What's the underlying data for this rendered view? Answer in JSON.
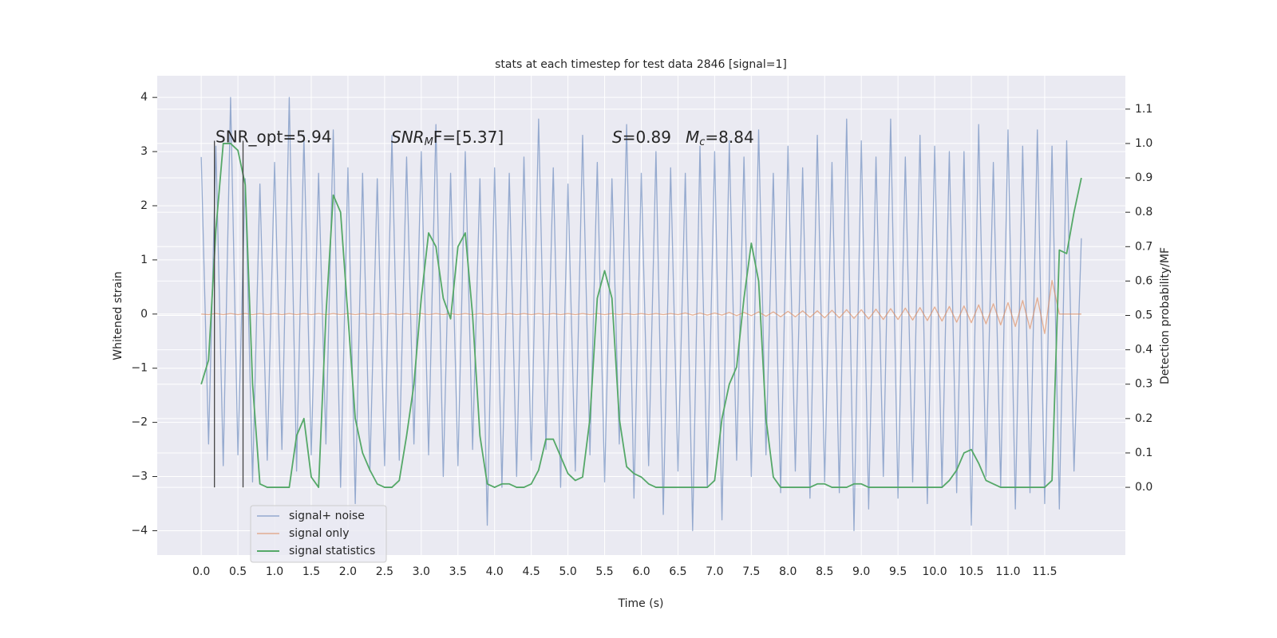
{
  "chart_data": {
    "type": "line",
    "title": "stats at each timestep for test data 2846 [signal=1]",
    "xlabel": "Time (s)",
    "ylabel": "Whitened strain",
    "y2label": "Detection probability/MF",
    "annotations": [
      "SNR_opt=5.94",
      {
        "base": "SNR",
        "sub": "M",
        "tail": "F=[5.37]"
      },
      {
        "base": "S",
        "tail": "=0.89"
      },
      {
        "base": "M",
        "sub": "c",
        "tail": "=8.84"
      }
    ],
    "x": [
      0.0,
      0.1,
      0.2,
      0.3,
      0.4,
      0.5,
      0.6,
      0.7,
      0.8,
      0.9,
      1.0,
      1.1,
      1.2,
      1.3,
      1.4,
      1.5,
      1.6,
      1.7,
      1.8,
      1.9,
      2.0,
      2.1,
      2.2,
      2.3,
      2.4,
      2.5,
      2.6,
      2.7,
      2.8,
      2.9,
      3.0,
      3.1,
      3.2,
      3.3,
      3.4,
      3.5,
      3.6,
      3.7,
      3.8,
      3.9,
      4.0,
      4.1,
      4.2,
      4.3,
      4.4,
      4.5,
      4.6,
      4.7,
      4.8,
      4.9,
      5.0,
      5.1,
      5.2,
      5.3,
      5.4,
      5.5,
      5.6,
      5.7,
      5.8,
      5.9,
      6.0,
      6.1,
      6.2,
      6.3,
      6.4,
      6.5,
      6.6,
      6.7,
      6.8,
      6.9,
      7.0,
      7.1,
      7.2,
      7.3,
      7.4,
      7.5,
      7.6,
      7.7,
      7.8,
      7.9,
      8.0,
      8.1,
      8.2,
      8.3,
      8.4,
      8.5,
      8.6,
      8.7,
      8.8,
      8.9,
      9.0,
      9.1,
      9.2,
      9.3,
      9.4,
      9.5,
      9.6,
      9.7,
      9.8,
      9.9,
      10.0,
      10.1,
      10.2,
      10.3,
      10.4,
      10.5,
      10.6,
      10.7,
      10.8,
      10.9,
      11.0,
      11.1,
      11.2,
      11.3,
      11.4,
      11.5,
      11.6,
      11.7,
      11.8,
      11.9,
      12.0
    ],
    "series": [
      {
        "name": "signal+ noise",
        "color": "#4c72b0",
        "axis": "y",
        "values": [
          2.9,
          -2.4,
          3.1,
          -2.8,
          4.0,
          -2.6,
          2.5,
          -3.1,
          2.4,
          -2.7,
          2.8,
          -2.5,
          4.0,
          -2.9,
          3.3,
          -2.6,
          2.6,
          -2.4,
          3.4,
          -3.2,
          2.7,
          -3.5,
          2.6,
          -2.9,
          2.5,
          -2.8,
          3.3,
          -2.7,
          2.9,
          -2.4,
          3.0,
          -2.6,
          3.5,
          -3.0,
          2.6,
          -2.8,
          3.0,
          -2.5,
          2.5,
          -3.9,
          2.7,
          -3.2,
          2.6,
          -3.0,
          2.9,
          -2.7,
          3.6,
          -2.5,
          2.7,
          -3.2,
          2.4,
          -2.9,
          3.3,
          -2.6,
          2.8,
          -3.1,
          2.5,
          -2.4,
          3.5,
          -3.4,
          2.6,
          -2.8,
          3.0,
          -3.7,
          2.7,
          -2.9,
          2.6,
          -4.0,
          3.1,
          -3.2,
          3.0,
          -3.8,
          3.2,
          -2.7,
          2.9,
          -3.0,
          3.4,
          -2.6,
          2.6,
          -3.3,
          3.1,
          -2.9,
          2.7,
          -3.4,
          3.3,
          -3.1,
          2.8,
          -3.3,
          3.6,
          -4.0,
          3.2,
          -3.6,
          2.9,
          -3.0,
          3.6,
          -3.4,
          2.9,
          -3.1,
          3.3,
          -3.5,
          3.1,
          -3.2,
          3.0,
          -3.3,
          3.0,
          -3.9,
          3.5,
          -3.0,
          2.8,
          -3.2,
          3.4,
          -3.6,
          3.1,
          -3.3,
          3.4,
          -3.5,
          3.1,
          -3.6,
          3.2,
          -2.9,
          1.4
        ]
      },
      {
        "name": "signal only",
        "color": "#dd8452",
        "axis": "y",
        "values": [
          0.0,
          -0.01,
          0.01,
          -0.01,
          0.01,
          -0.01,
          0.01,
          -0.01,
          0.01,
          -0.01,
          0.01,
          -0.01,
          0.01,
          -0.01,
          0.01,
          -0.01,
          0.01,
          -0.01,
          0.01,
          -0.01,
          0.01,
          -0.01,
          0.01,
          -0.01,
          0.01,
          -0.01,
          0.01,
          -0.01,
          0.01,
          -0.01,
          0.01,
          -0.01,
          0.01,
          -0.01,
          0.01,
          -0.01,
          0.01,
          -0.01,
          0.01,
          -0.01,
          0.01,
          -0.01,
          0.01,
          -0.01,
          0.01,
          -0.01,
          0.01,
          -0.01,
          0.01,
          -0.01,
          0.01,
          -0.01,
          0.01,
          -0.01,
          0.01,
          -0.01,
          0.01,
          -0.01,
          0.01,
          -0.01,
          0.01,
          -0.01,
          0.01,
          -0.01,
          0.01,
          -0.01,
          0.02,
          -0.02,
          0.02,
          -0.02,
          0.02,
          -0.02,
          0.03,
          -0.03,
          0.03,
          -0.03,
          0.04,
          -0.04,
          0.04,
          -0.05,
          0.05,
          -0.05,
          0.06,
          -0.06,
          0.06,
          -0.07,
          0.07,
          -0.07,
          0.08,
          -0.08,
          0.08,
          -0.09,
          0.09,
          -0.1,
          0.1,
          -0.1,
          0.11,
          -0.11,
          0.12,
          -0.12,
          0.13,
          -0.13,
          0.14,
          -0.15,
          0.15,
          -0.16,
          0.17,
          -0.18,
          0.19,
          -0.2,
          0.21,
          -0.23,
          0.25,
          -0.27,
          0.3,
          -0.36,
          0.62,
          0.0,
          0.0,
          0.0,
          0.0
        ]
      },
      {
        "name": "signal statistics",
        "color": "#55a868",
        "axis": "y2",
        "values": [
          0.3,
          0.37,
          0.75,
          1.0,
          1.0,
          0.98,
          0.88,
          0.3,
          0.01,
          0.0,
          0.0,
          0.0,
          0.0,
          0.15,
          0.2,
          0.03,
          0.0,
          0.5,
          0.85,
          0.8,
          0.5,
          0.2,
          0.1,
          0.05,
          0.01,
          0.0,
          0.0,
          0.02,
          0.15,
          0.3,
          0.55,
          0.74,
          0.7,
          0.55,
          0.49,
          0.7,
          0.74,
          0.5,
          0.15,
          0.01,
          0.0,
          0.01,
          0.01,
          0.0,
          0.0,
          0.01,
          0.05,
          0.14,
          0.14,
          0.09,
          0.04,
          0.02,
          0.03,
          0.2,
          0.55,
          0.63,
          0.55,
          0.2,
          0.06,
          0.04,
          0.03,
          0.01,
          0.0,
          0.0,
          0.0,
          0.0,
          0.0,
          0.0,
          0.0,
          0.0,
          0.02,
          0.2,
          0.3,
          0.35,
          0.55,
          0.71,
          0.6,
          0.2,
          0.03,
          0.0,
          0.0,
          0.0,
          0.0,
          0.0,
          0.01,
          0.01,
          0.0,
          0.0,
          0.0,
          0.01,
          0.01,
          0.0,
          0.0,
          0.0,
          0.0,
          0.0,
          0.0,
          0.0,
          0.0,
          0.0,
          0.0,
          0.0,
          0.02,
          0.05,
          0.1,
          0.11,
          0.07,
          0.02,
          0.01,
          0.0,
          0.0,
          0.0,
          0.0,
          0.0,
          0.0,
          0.0,
          0.02,
          0.69,
          0.68,
          0.8,
          0.9
        ]
      }
    ],
    "vlines": {
      "x": [
        0.18,
        0.57
      ],
      "ymin": -3.2,
      "ymax": 3.2,
      "color": "#444444"
    },
    "xlim": [
      -0.6,
      12.6
    ],
    "xticks": [
      {
        "value": 0,
        "label": "0.0"
      },
      {
        "value": 0.5,
        "label": "0.5"
      },
      {
        "value": 1,
        "label": "1.0"
      },
      {
        "value": 1.5,
        "label": "1.5"
      },
      {
        "value": 2,
        "label": "2.0"
      },
      {
        "value": 2.5,
        "label": "2.5"
      },
      {
        "value": 3,
        "label": "3.0"
      },
      {
        "value": 3.5,
        "label": "3.5"
      },
      {
        "value": 4,
        "label": "4.0"
      },
      {
        "value": 4.5,
        "label": "4.5"
      },
      {
        "value": 5,
        "label": "5.0"
      },
      {
        "value": 5.5,
        "label": "5.5"
      },
      {
        "value": 6,
        "label": "6.0"
      },
      {
        "value": 6.5,
        "label": "6.5"
      },
      {
        "value": 7,
        "label": "7.0"
      },
      {
        "value": 7.5,
        "label": "7.5"
      },
      {
        "value": 8,
        "label": "8.0"
      },
      {
        "value": 8.5,
        "label": "8.5"
      },
      {
        "value": 9,
        "label": "9.0"
      },
      {
        "value": 9.5,
        "label": "9.5"
      },
      {
        "value": 10,
        "label": "10.0"
      },
      {
        "value": 10.5,
        "label": "10.5"
      },
      {
        "value": 11,
        "label": "11.0"
      },
      {
        "value": 11.5,
        "label": "11.5"
      }
    ],
    "ylim": [
      -4.45,
      4.4
    ],
    "yticks": [
      {
        "value": -4,
        "label": "−4"
      },
      {
        "value": -3,
        "label": "−3"
      },
      {
        "value": -2,
        "label": "−2"
      },
      {
        "value": -1,
        "label": "−1"
      },
      0,
      1,
      2,
      3,
      4
    ],
    "y2lim": [
      -0.197,
      1.197
    ],
    "y2ticks": [
      {
        "value": 0,
        "label": "0.0"
      },
      {
        "value": 0.1,
        "label": "0.1"
      },
      {
        "value": 0.2,
        "label": "0.2"
      },
      {
        "value": 0.3,
        "label": "0.3"
      },
      {
        "value": 0.4,
        "label": "0.4"
      },
      {
        "value": 0.5,
        "label": "0.5"
      },
      {
        "value": 0.6,
        "label": "0.6"
      },
      {
        "value": 0.7,
        "label": "0.7"
      },
      {
        "value": 0.8,
        "label": "0.8"
      },
      {
        "value": 0.9,
        "label": "0.9"
      },
      {
        "value": 1,
        "label": "1.0"
      },
      {
        "value": 1.1,
        "label": "1.1"
      }
    ],
    "grid": true,
    "legend": "lower left",
    "background": "#eaeaf2"
  }
}
